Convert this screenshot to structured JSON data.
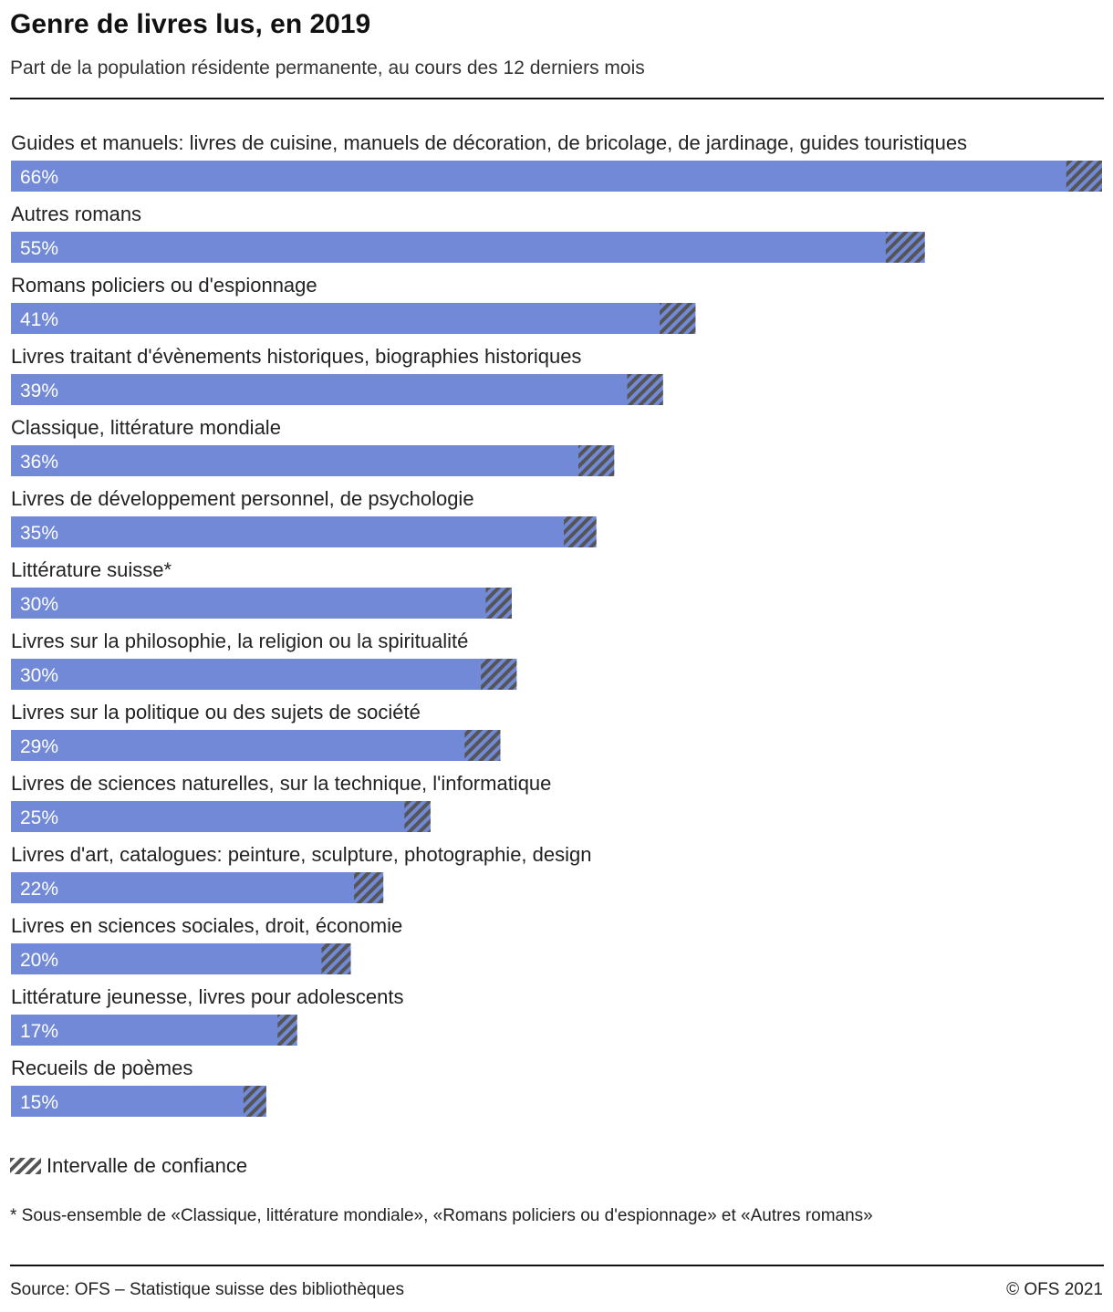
{
  "header": {
    "title": "Genre de livres lus, en 2019",
    "subtitle": "Part de la population résidente permanente, au cours des 12 derniers mois"
  },
  "colors": {
    "bar": "#7189d6",
    "interval_stripe": "#555555",
    "text": "#222222"
  },
  "chart_data": {
    "type": "bar",
    "orientation": "horizontal",
    "title": "Genre de livres lus, en 2019",
    "subtitle": "Part de la population résidente permanente, au cours des 12 derniers mois",
    "xlim": [
      0,
      70
    ],
    "grid": false,
    "legend_position": "bottom-left",
    "categories": [
      "Guides et manuels: livres de cuisine, manuels de décoration, de bricolage, de jardinage, guides touristiques",
      "Autres romans",
      "Romans policiers ou d'espionnage",
      "Livres traitant d'évènements historiques, biographies historiques",
      "Classique, littérature mondiale",
      "Livres de développement personnel, de psychologie",
      "Littérature suisse*",
      "Livres sur la philosophie, la religion ou la spiritualité",
      "Livres sur la politique ou des sujets de société",
      "Livres de sciences naturelles, sur la technique, l'informatique",
      "Livres d'art, catalogues: peinture, sculpture, photographie, design",
      "Livres en sciences sociales, droit, économie",
      "Littérature jeunesse, livres pour adolescents",
      "Recueils de poèmes"
    ],
    "values": [
      66,
      55,
      41,
      39,
      36,
      35,
      30,
      30,
      29,
      25,
      22,
      20,
      17,
      15
    ],
    "value_labels": [
      "66%",
      "55%",
      "41%",
      "39%",
      "36%",
      "35%",
      "30%",
      "30%",
      "29%",
      "25%",
      "22%",
      "20%",
      "17%",
      "15%"
    ],
    "ci_low": [
      64.9,
      53.8,
      39.9,
      37.9,
      34.9,
      34.0,
      29.2,
      28.9,
      27.9,
      24.2,
      21.1,
      19.1,
      16.4,
      14.3
    ],
    "ci_high": [
      67.1,
      56.2,
      42.1,
      40.1,
      37.1,
      36.0,
      30.8,
      31.1,
      30.1,
      25.8,
      22.9,
      20.9,
      17.6,
      15.7
    ],
    "legend": [
      "Intervalle de confiance"
    ]
  },
  "footer": {
    "legend_label": "Intervalle de confiance",
    "footnote": "* Sous-ensemble de «Classique, littérature mondiale», «Romans policiers ou d'espionnage» et «Autres romans»",
    "source": "Source: OFS – Statistique suisse des bibliothèques",
    "copyright": "© OFS 2021"
  }
}
